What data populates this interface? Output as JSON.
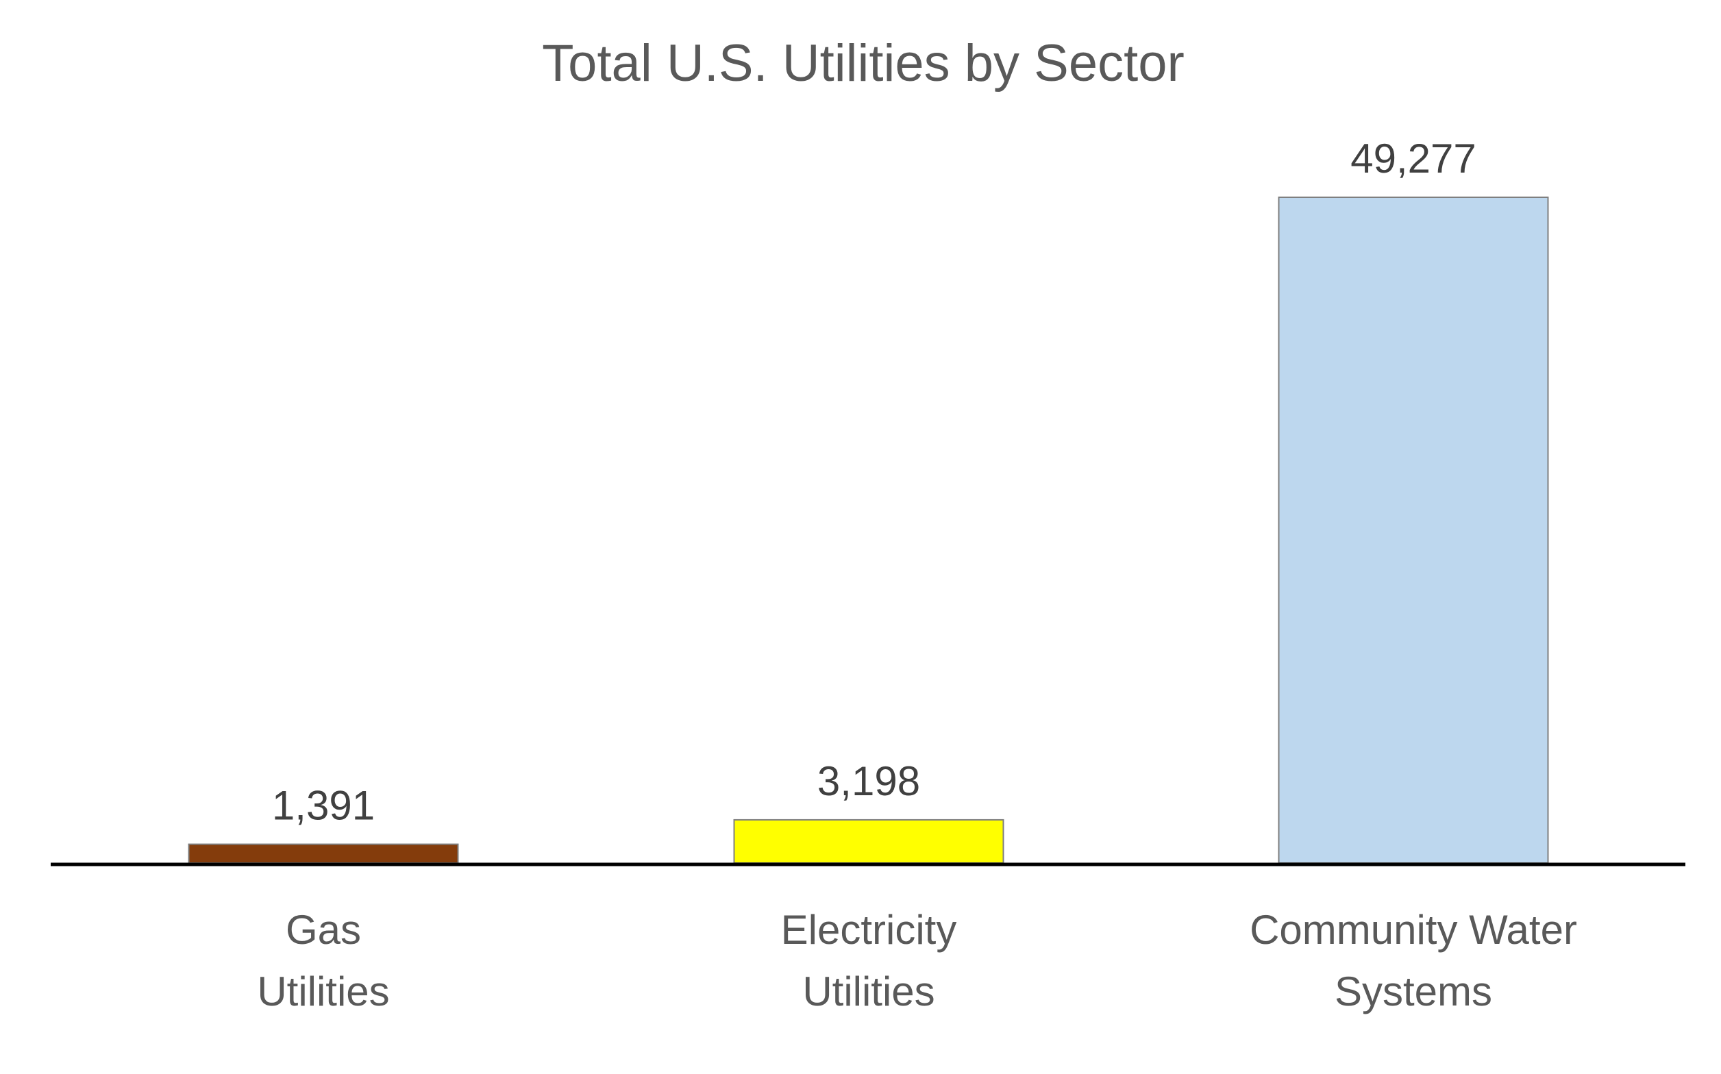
{
  "chart_data": {
    "type": "bar",
    "title": "Total U.S. Utilities by Sector",
    "categories": [
      [
        "Gas",
        "Utilities"
      ],
      [
        "Electricity",
        "Utilities"
      ],
      [
        "Community Water",
        "Systems"
      ]
    ],
    "values": [
      1391,
      3198,
      49277
    ],
    "value_labels": [
      "1,391",
      "3,198",
      "49,277"
    ],
    "colors": [
      "#843C0C",
      "#FFFF00",
      "#BDD7EE"
    ],
    "bar_edge_color": "#7F7F7F",
    "xlabel": "",
    "ylabel": "",
    "ylim": [
      0,
      49277
    ],
    "grid": false,
    "legend": "none"
  }
}
